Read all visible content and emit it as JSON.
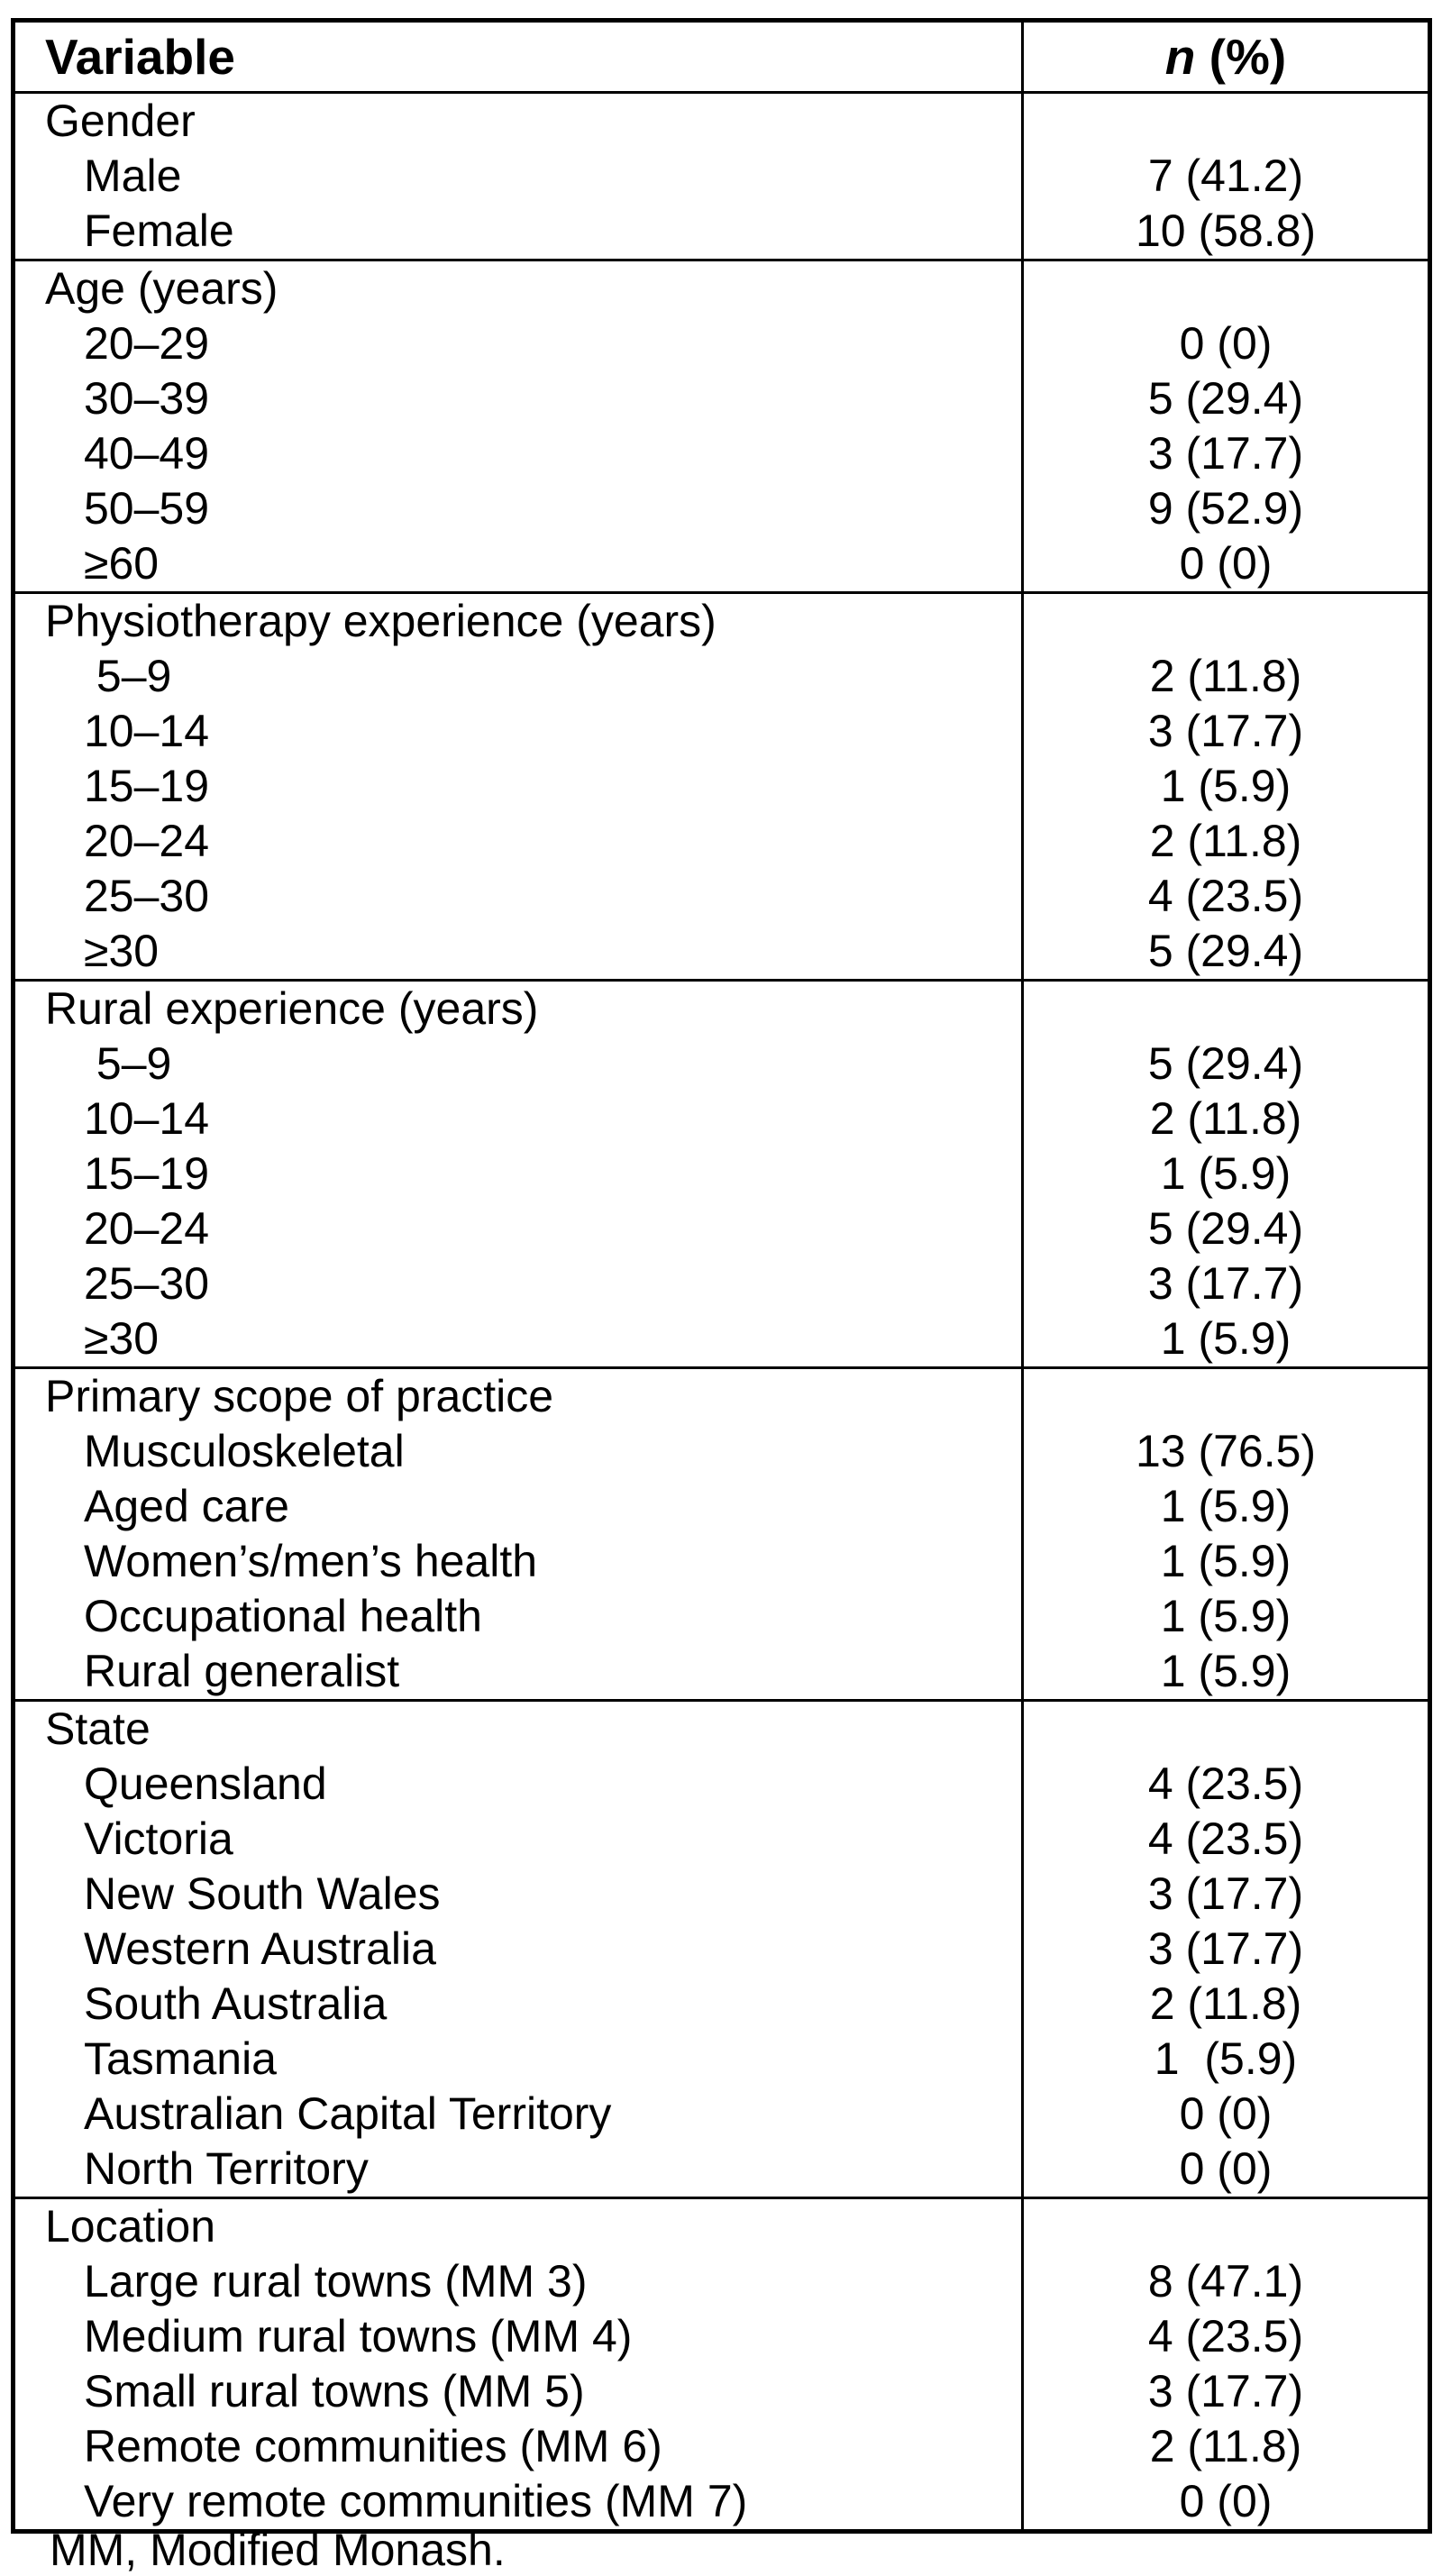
{
  "page": {
    "footnote": "MM, Modified Monash."
  },
  "table": {
    "header": {
      "variable": "Variable",
      "n_italic": "n",
      "n_suffix": " (%)"
    },
    "sections": [
      {
        "label": "Gender",
        "rows": [
          {
            "label": "Male",
            "value": "7 (41.2)"
          },
          {
            "label": "Female",
            "value": "10 (58.8)"
          }
        ]
      },
      {
        "label": "Age (years)",
        "rows": [
          {
            "label": "20–29",
            "value": "0 (0)"
          },
          {
            "label": "30–39",
            "value": "5 (29.4)"
          },
          {
            "label": "40–49",
            "value": "3 (17.7)"
          },
          {
            "label": "50–59",
            "value": "9 (52.9)"
          },
          {
            "label": "≥60",
            "value": "0 (0)"
          }
        ]
      },
      {
        "label": "Physiotherapy experience (years)",
        "rows": [
          {
            "label": " 5–9",
            "value": "2 (11.8)"
          },
          {
            "label": "10–14",
            "value": "3 (17.7)"
          },
          {
            "label": "15–19",
            "value": "1 (5.9)"
          },
          {
            "label": "20–24",
            "value": "2 (11.8)"
          },
          {
            "label": "25–30",
            "value": "4 (23.5)"
          },
          {
            "label": "≥30",
            "value": "5 (29.4)"
          }
        ]
      },
      {
        "label": "Rural experience (years)",
        "rows": [
          {
            "label": " 5–9",
            "value": "5 (29.4)"
          },
          {
            "label": "10–14",
            "value": "2 (11.8)"
          },
          {
            "label": "15–19",
            "value": "1 (5.9)"
          },
          {
            "label": "20–24",
            "value": "5 (29.4)"
          },
          {
            "label": "25–30",
            "value": "3 (17.7)"
          },
          {
            "label": "≥30",
            "value": "1 (5.9)"
          }
        ]
      },
      {
        "label": "Primary scope of practice",
        "rows": [
          {
            "label": "Musculoskeletal",
            "value": "13 (76.5)"
          },
          {
            "label": "Aged care",
            "value": "1 (5.9)"
          },
          {
            "label": "Women’s/men’s health",
            "value": "1 (5.9)"
          },
          {
            "label": "Occupational health",
            "value": "1 (5.9)"
          },
          {
            "label": "Rural generalist",
            "value": "1 (5.9)"
          }
        ]
      },
      {
        "label": "State",
        "rows": [
          {
            "label": "Queensland",
            "value": "4 (23.5)"
          },
          {
            "label": "Victoria",
            "value": "4 (23.5)"
          },
          {
            "label": "New South Wales",
            "value": "3 (17.7)"
          },
          {
            "label": "Western Australia",
            "value": "3 (17.7)"
          },
          {
            "label": "South Australia",
            "value": "2 (11.8)"
          },
          {
            "label": "Tasmania",
            "value": "1  (5.9)"
          },
          {
            "label": "Australian Capital Territory",
            "value": "0 (0)"
          },
          {
            "label": "North Territory",
            "value": "0 (0)"
          }
        ]
      },
      {
        "label": "Location",
        "rows": [
          {
            "label": "Large rural towns (MM 3)",
            "value": "8 (47.1)"
          },
          {
            "label": "Medium rural towns (MM 4)",
            "value": "4 (23.5)"
          },
          {
            "label": "Small rural towns (MM 5)",
            "value": "3 (17.7)"
          },
          {
            "label": "Remote communities (MM 6)",
            "value": "2 (11.8)"
          },
          {
            "label": "Very remote communities (MM 7)",
            "value": "0 (0)"
          }
        ]
      }
    ]
  }
}
